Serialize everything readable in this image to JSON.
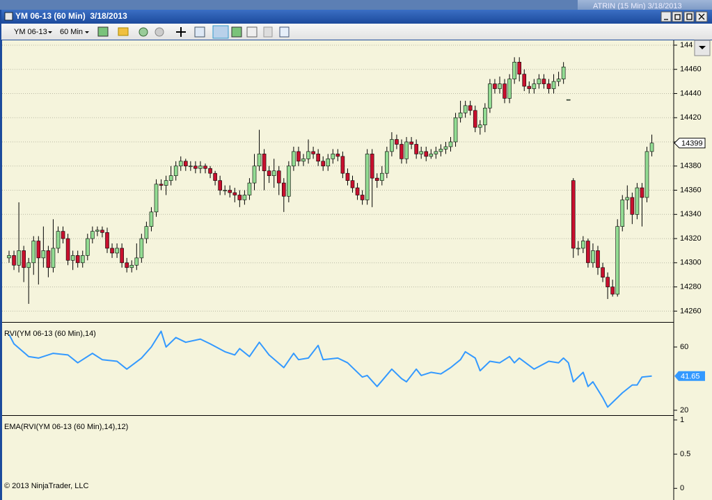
{
  "window": {
    "title": "YM 06-13 (60 Min)  3/18/2013",
    "background_window_title": "ATRIN (15 Min) 3/18/2013"
  },
  "toolbar": {
    "instrument": "YM 06-13",
    "period": "60 Min"
  },
  "copyright": "© 2013 NinjaTrader, LLC",
  "chart_data": [
    {
      "type": "candlestick",
      "up_color": "#93dc93",
      "down_color": "#c8102e",
      "grid": true,
      "ylim": [
        14251,
        14484
      ],
      "yticks": [
        14260,
        14280,
        14300,
        14320,
        14340,
        14360,
        14380,
        14400,
        14420,
        14440,
        14460,
        {
          "value": 14480,
          "label": "144"
        }
      ],
      "ohlc": [
        [
          14304,
          14310,
          14300,
          14306
        ],
        [
          14306,
          14310,
          14294,
          14298
        ],
        [
          14298,
          14350,
          14292,
          14310
        ],
        [
          14310,
          14314,
          14284,
          14296
        ],
        [
          14296,
          14304,
          14266,
          14300
        ],
        [
          14300,
          14322,
          14290,
          14318
        ],
        [
          14318,
          14322,
          14282,
          14304
        ],
        [
          14304,
          14330,
          14296,
          14310
        ],
        [
          14310,
          14314,
          14288,
          14296
        ],
        [
          14296,
          14336,
          14292,
          14312
        ],
        [
          14312,
          14330,
          14308,
          14326
        ],
        [
          14326,
          14330,
          14316,
          14320
        ],
        [
          14320,
          14324,
          14298,
          14302
        ],
        [
          14302,
          14310,
          14294,
          14306
        ],
        [
          14306,
          14310,
          14296,
          14300
        ],
        [
          14300,
          14310,
          14296,
          14306
        ],
        [
          14306,
          14324,
          14302,
          14320
        ],
        [
          14320,
          14330,
          14316,
          14326
        ],
        [
          14326,
          14330,
          14322,
          14327
        ],
        [
          14327,
          14330,
          14321,
          14325
        ],
        [
          14325,
          14329,
          14308,
          14312
        ],
        [
          14312,
          14316,
          14304,
          14308
        ],
        [
          14308,
          14316,
          14304,
          14312
        ],
        [
          14312,
          14316,
          14296,
          14300
        ],
        [
          14300,
          14304,
          14292,
          14296
        ],
        [
          14296,
          14302,
          14292,
          14298
        ],
        [
          14298,
          14316,
          14294,
          14304
        ],
        [
          14304,
          14324,
          14300,
          14320
        ],
        [
          14320,
          14334,
          14316,
          14330
        ],
        [
          14330,
          14346,
          14326,
          14342
        ],
        [
          14342,
          14369,
          14338,
          14365
        ],
        [
          14365,
          14369,
          14360,
          14364
        ],
        [
          14364,
          14372,
          14356,
          14368
        ],
        [
          14368,
          14380,
          14364,
          14372
        ],
        [
          14372,
          14384,
          14368,
          14380
        ],
        [
          14380,
          14388,
          14376,
          14384
        ],
        [
          14384,
          14386,
          14376,
          14380
        ],
        [
          14380,
          14384,
          14376,
          14380
        ],
        [
          14380,
          14384,
          14374,
          14378
        ],
        [
          14378,
          14384,
          14374,
          14380
        ],
        [
          14380,
          14382,
          14374,
          14378
        ],
        [
          14378,
          14380,
          14370,
          14374
        ],
        [
          14374,
          14376,
          14364,
          14368
        ],
        [
          14368,
          14372,
          14356,
          14360
        ],
        [
          14360,
          14364,
          14356,
          14360
        ],
        [
          14360,
          14364,
          14354,
          14358
        ],
        [
          14358,
          14362,
          14350,
          14356
        ],
        [
          14356,
          14360,
          14346,
          14352
        ],
        [
          14352,
          14360,
          14348,
          14356
        ],
        [
          14356,
          14370,
          14352,
          14366
        ],
        [
          14366,
          14390,
          14360,
          14380
        ],
        [
          14380,
          14410,
          14376,
          14390
        ],
        [
          14390,
          14394,
          14360,
          14376
        ],
        [
          14376,
          14380,
          14366,
          14372
        ],
        [
          14372,
          14386,
          14362,
          14376
        ],
        [
          14376,
          14380,
          14356,
          14366
        ],
        [
          14366,
          14370,
          14342,
          14355
        ],
        [
          14355,
          14384,
          14350,
          14380
        ],
        [
          14380,
          14396,
          14376,
          14392
        ],
        [
          14392,
          14396,
          14380,
          14384
        ],
        [
          14384,
          14390,
          14380,
          14386
        ],
        [
          14386,
          14402,
          14382,
          14392
        ],
        [
          14392,
          14396,
          14386,
          14390
        ],
        [
          14390,
          14394,
          14380,
          14384
        ],
        [
          14384,
          14388,
          14376,
          14380
        ],
        [
          14380,
          14390,
          14376,
          14386
        ],
        [
          14386,
          14394,
          14382,
          14390
        ],
        [
          14390,
          14394,
          14384,
          14388
        ],
        [
          14388,
          14392,
          14370,
          14374
        ],
        [
          14374,
          14378,
          14364,
          14368
        ],
        [
          14368,
          14372,
          14358,
          14362
        ],
        [
          14362,
          14366,
          14352,
          14356
        ],
        [
          14356,
          14360,
          14348,
          14352
        ],
        [
          14352,
          14394,
          14348,
          14390
        ],
        [
          14390,
          14394,
          14346,
          14370
        ],
        [
          14370,
          14374,
          14362,
          14368
        ],
        [
          14368,
          14380,
          14364,
          14374
        ],
        [
          14374,
          14396,
          14370,
          14392
        ],
        [
          14392,
          14408,
          14388,
          14402
        ],
        [
          14402,
          14406,
          14394,
          14398
        ],
        [
          14398,
          14402,
          14382,
          14386
        ],
        [
          14386,
          14404,
          14382,
          14400
        ],
        [
          14400,
          14404,
          14394,
          14398
        ],
        [
          14398,
          14402,
          14386,
          14390
        ],
        [
          14390,
          14396,
          14386,
          14392
        ],
        [
          14392,
          14396,
          14384,
          14388
        ],
        [
          14388,
          14394,
          14386,
          14390
        ],
        [
          14390,
          14396,
          14386,
          14392
        ],
        [
          14392,
          14398,
          14388,
          14394
        ],
        [
          14394,
          14400,
          14390,
          14396
        ],
        [
          14396,
          14404,
          14392,
          14400
        ],
        [
          14400,
          14424,
          14396,
          14420
        ],
        [
          14420,
          14434,
          14416,
          14424
        ],
        [
          14424,
          14434,
          14420,
          14430
        ],
        [
          14430,
          14434,
          14422,
          14426
        ],
        [
          14426,
          14430,
          14408,
          14412
        ],
        [
          14412,
          14418,
          14406,
          14414
        ],
        [
          14414,
          14432,
          14408,
          14428
        ],
        [
          14428,
          14452,
          14424,
          14448
        ],
        [
          14448,
          14452,
          14440,
          14444
        ],
        [
          14444,
          14454,
          14440,
          14448
        ],
        [
          14448,
          14452,
          14432,
          14436
        ],
        [
          14436,
          14456,
          14432,
          14452
        ],
        [
          14452,
          14470,
          14448,
          14466
        ],
        [
          14466,
          14470,
          14450,
          14456
        ],
        [
          14456,
          14460,
          14442,
          14446
        ],
        [
          14446,
          14450,
          14440,
          14444
        ],
        [
          14444,
          14452,
          14440,
          14448
        ],
        [
          14448,
          14456,
          14444,
          14452
        ],
        [
          14452,
          14456,
          14444,
          14448
        ],
        [
          14448,
          14452,
          14440,
          14444
        ],
        [
          14444,
          14456,
          14440,
          14450
        ],
        [
          14450,
          14458,
          14446,
          14452
        ],
        [
          14452,
          14466,
          14448,
          14462
        ],
        [
          14435,
          14435,
          14435,
          14435
        ],
        [
          14368,
          14370,
          14304,
          14312
        ],
        [
          14312,
          14318,
          14306,
          14312
        ],
        [
          14312,
          14322,
          14308,
          14318
        ],
        [
          14318,
          14320,
          14296,
          14300
        ],
        [
          14300,
          14316,
          14296,
          14310
        ],
        [
          14310,
          14314,
          14290,
          14296
        ],
        [
          14296,
          14300,
          14284,
          14288
        ],
        [
          14288,
          14292,
          14270,
          14280
        ],
        [
          14280,
          14286,
          14272,
          14274
        ],
        [
          14274,
          14336,
          14272,
          14330
        ],
        [
          14330,
          14356,
          14326,
          14352
        ],
        [
          14352,
          14364,
          14344,
          14354
        ],
        [
          14354,
          14358,
          14332,
          14340
        ],
        [
          14340,
          14366,
          14336,
          14362
        ],
        [
          14362,
          14366,
          14330,
          14354
        ],
        [
          14354,
          14396,
          14350,
          14392
        ],
        [
          14392,
          14406,
          14388,
          14399
        ]
      ]
    },
    {
      "type": "line",
      "title": "RVI(YM 06-13 (60 Min),14)",
      "color": "#3399ff",
      "ylim": [
        16.9,
        75.4
      ],
      "yticks": [
        20,
        60
      ],
      "x": [
        0,
        1,
        4,
        6,
        9,
        12,
        14,
        17,
        19,
        22,
        24,
        27,
        29,
        31,
        32,
        34,
        36,
        39,
        41,
        44,
        46,
        47,
        49,
        51,
        53,
        56,
        58,
        59,
        61,
        63,
        64,
        67,
        69,
        72,
        73,
        75,
        78,
        80,
        81,
        83,
        84,
        86,
        88,
        90,
        92,
        93,
        95,
        96,
        98,
        100,
        102,
        103,
        104,
        107,
        110,
        112,
        113,
        114,
        115,
        117,
        118,
        119,
        121,
        122,
        125,
        127,
        128,
        129,
        131
      ],
      "values": [
        68,
        62,
        54,
        53,
        56,
        55,
        50,
        56,
        52,
        51,
        46,
        53,
        60,
        70,
        60,
        66,
        63,
        65,
        62,
        57,
        55,
        59,
        54,
        63,
        55,
        47,
        56,
        52,
        53,
        61,
        52,
        53,
        50,
        41,
        42,
        35,
        46,
        40,
        38,
        46,
        42,
        44,
        43,
        47,
        52,
        57,
        53,
        45,
        51,
        50,
        54,
        50,
        53,
        46,
        51,
        50,
        53,
        50,
        38,
        44,
        35,
        38,
        28,
        22,
        31,
        36,
        36,
        41,
        41.65
      ]
    },
    {
      "type": "line",
      "title": "EMA(RVI(YM 06-13 (60 Min),14),12)",
      "color": "#3399ff",
      "ylim": [
        -0.16,
        1.06
      ],
      "yticks": [
        0,
        0.5,
        1
      ]
    }
  ]
}
